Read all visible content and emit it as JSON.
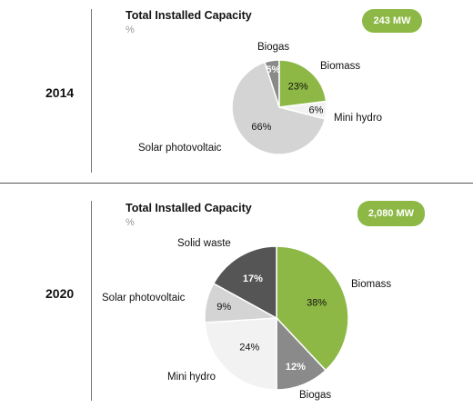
{
  "chart_data": [
    {
      "type": "pie",
      "year": "2014",
      "title": "Total Installed Capacity",
      "unit": "%",
      "total_badge": "243 MW",
      "slices": [
        {
          "name": "Biogas",
          "value": 5,
          "label": "5%",
          "color": "#8a8a8a"
        },
        {
          "name": "Biomass",
          "value": 23,
          "label": "23%",
          "color": "#8db845"
        },
        {
          "name": "Mini hydro",
          "value": 6,
          "label": "6%",
          "color": "#f2f2f2"
        },
        {
          "name": "Solar photovoltaic",
          "value": 66,
          "label": "66%",
          "color": "#d4d4d4"
        }
      ]
    },
    {
      "type": "pie",
      "year": "2020",
      "title": "Total Installed Capacity",
      "unit": "%",
      "total_badge": "2,080 MW",
      "slices": [
        {
          "name": "Biomass",
          "value": 38,
          "label": "38%",
          "color": "#8db845"
        },
        {
          "name": "Biogas",
          "value": 12,
          "label": "12%",
          "color": "#8a8a8a"
        },
        {
          "name": "Mini hydro",
          "value": 24,
          "label": "24%",
          "color": "#f2f2f2"
        },
        {
          "name": "Solar photovoltaic",
          "value": 9,
          "label": "9%",
          "color": "#d4d4d4"
        },
        {
          "name": "Solid waste",
          "value": 17,
          "label": "17%",
          "color": "#555555"
        }
      ]
    }
  ]
}
